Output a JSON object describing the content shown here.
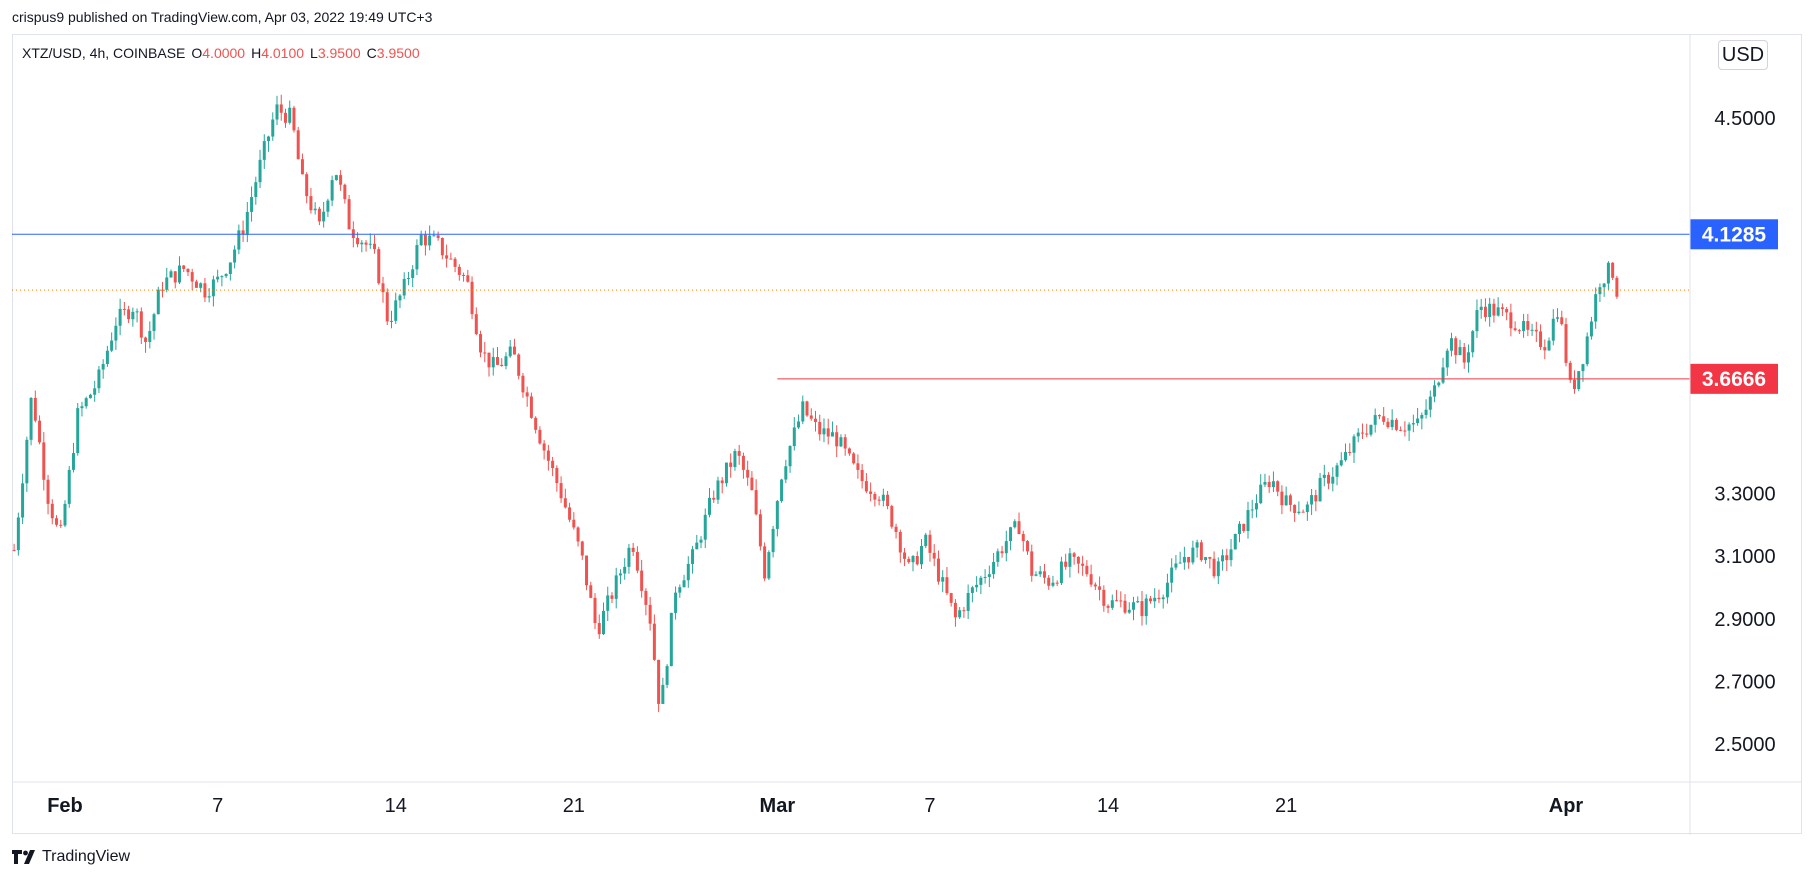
{
  "header": {
    "published": "crispus9 published on TradingView.com, Apr 03, 2022 19:49 UTC+3"
  },
  "legend": {
    "symbol": "XTZ/USD, 4h, COINBASE",
    "o_label": "O",
    "o_value": "4.0000",
    "h_label": "H",
    "h_value": "4.0100",
    "l_label": "L",
    "l_value": "3.9500",
    "c_label": "C",
    "c_value": "3.9500"
  },
  "currency": "USD",
  "brand": "TradingView",
  "chart_data": {
    "type": "candlestick",
    "symbol": "XTZ/USD",
    "interval": "4h",
    "exchange": "COINBASE",
    "y_ticks": [
      "4.5000",
      "3.3000",
      "3.1000",
      "2.9000",
      "2.7000",
      "2.5000"
    ],
    "x_ticks": [
      {
        "label": "Feb",
        "day": 0,
        "bold": true
      },
      {
        "label": "7",
        "day": 6,
        "bold": false
      },
      {
        "label": "14",
        "day": 13,
        "bold": false
      },
      {
        "label": "21",
        "day": 20,
        "bold": false
      },
      {
        "label": "Mar",
        "day": 28,
        "bold": true
      },
      {
        "label": "7",
        "day": 34,
        "bold": false
      },
      {
        "label": "14",
        "day": 41,
        "bold": false
      },
      {
        "label": "21",
        "day": 48,
        "bold": false
      },
      {
        "label": "Apr",
        "day": 59,
        "bold": true
      }
    ],
    "ylim": [
      2.4,
      4.72
    ],
    "first_day": -2.0,
    "last_day": 61.0,
    "candles_per_day": 6,
    "anchors": [
      [
        -2.0,
        3.12
      ],
      [
        -1.3,
        3.62
      ],
      [
        -0.7,
        3.3
      ],
      [
        -0.2,
        3.15
      ],
      [
        0.5,
        3.55
      ],
      [
        1.3,
        3.66
      ],
      [
        2.0,
        3.85
      ],
      [
        2.7,
        3.9
      ],
      [
        3.2,
        3.78
      ],
      [
        3.8,
        3.97
      ],
      [
        4.7,
        4.02
      ],
      [
        5.5,
        3.95
      ],
      [
        6.0,
        3.98
      ],
      [
        6.5,
        4.05
      ],
      [
        7.0,
        4.15
      ],
      [
        7.6,
        4.33
      ],
      [
        8.3,
        4.53
      ],
      [
        8.9,
        4.5
      ],
      [
        9.3,
        4.3
      ],
      [
        10.0,
        4.15
      ],
      [
        10.6,
        4.35
      ],
      [
        11.2,
        4.15
      ],
      [
        11.8,
        4.1
      ],
      [
        12.2,
        4.05
      ],
      [
        12.7,
        3.85
      ],
      [
        13.3,
        3.95
      ],
      [
        14.0,
        4.12
      ],
      [
        14.6,
        4.1
      ],
      [
        15.1,
        4.05
      ],
      [
        15.8,
        3.98
      ],
      [
        16.4,
        3.75
      ],
      [
        16.9,
        3.7
      ],
      [
        17.6,
        3.75
      ],
      [
        18.2,
        3.6
      ],
      [
        18.8,
        3.45
      ],
      [
        19.5,
        3.3
      ],
      [
        20.3,
        3.1
      ],
      [
        20.9,
        2.86
      ],
      [
        21.6,
        3.0
      ],
      [
        22.3,
        3.15
      ],
      [
        23.0,
        2.9
      ],
      [
        23.4,
        2.6
      ],
      [
        24.0,
        3.0
      ],
      [
        24.7,
        3.1
      ],
      [
        25.5,
        3.3
      ],
      [
        26.4,
        3.43
      ],
      [
        27.0,
        3.3
      ],
      [
        27.5,
        3.05
      ],
      [
        28.2,
        3.38
      ],
      [
        29.0,
        3.57
      ],
      [
        29.6,
        3.5
      ],
      [
        30.3,
        3.48
      ],
      [
        31.2,
        3.35
      ],
      [
        32.0,
        3.3
      ],
      [
        32.6,
        3.2
      ],
      [
        33.2,
        3.05
      ],
      [
        33.8,
        3.15
      ],
      [
        34.3,
        3.05
      ],
      [
        35.0,
        2.9
      ],
      [
        35.5,
        2.97
      ],
      [
        36.2,
        3.05
      ],
      [
        37.0,
        3.15
      ],
      [
        37.5,
        3.2
      ],
      [
        38.0,
        3.05
      ],
      [
        38.7,
        3.02
      ],
      [
        39.5,
        3.08
      ],
      [
        40.2,
        3.05
      ],
      [
        41.0,
        2.95
      ],
      [
        41.6,
        2.95
      ],
      [
        42.3,
        2.93
      ],
      [
        43.2,
        3.0
      ],
      [
        44.0,
        3.1
      ],
      [
        44.6,
        3.12
      ],
      [
        45.3,
        3.05
      ],
      [
        46.0,
        3.15
      ],
      [
        46.8,
        3.28
      ],
      [
        47.4,
        3.35
      ],
      [
        48.0,
        3.27
      ],
      [
        48.8,
        3.25
      ],
      [
        49.4,
        3.33
      ],
      [
        50.2,
        3.4
      ],
      [
        51.0,
        3.5
      ],
      [
        51.8,
        3.55
      ],
      [
        52.5,
        3.52
      ],
      [
        53.2,
        3.52
      ],
      [
        53.8,
        3.62
      ],
      [
        54.4,
        3.8
      ],
      [
        55.0,
        3.72
      ],
      [
        55.6,
        3.9
      ],
      [
        56.3,
        3.88
      ],
      [
        57.0,
        3.85
      ],
      [
        57.6,
        3.8
      ],
      [
        58.2,
        3.78
      ],
      [
        58.7,
        3.9
      ],
      [
        59.2,
        3.62
      ],
      [
        59.7,
        3.75
      ],
      [
        60.3,
        3.98
      ],
      [
        60.8,
        4.02
      ],
      [
        61.0,
        3.95
      ]
    ],
    "horizontal_lines": [
      {
        "price": 4.1285,
        "label": "4.1285",
        "color": "#2962ff",
        "style": "solid",
        "from_day": null
      },
      {
        "price": 3.6666,
        "label": "3.6666",
        "color": "#f23645",
        "style": "solid",
        "from_day": 28.0
      },
      {
        "price": 3.95,
        "label": "",
        "color": "#f57c00",
        "style": "dotted",
        "from_day": null
      }
    ],
    "up_color": "#26a69a",
    "down_color": "#ef5350",
    "grid": false
  }
}
